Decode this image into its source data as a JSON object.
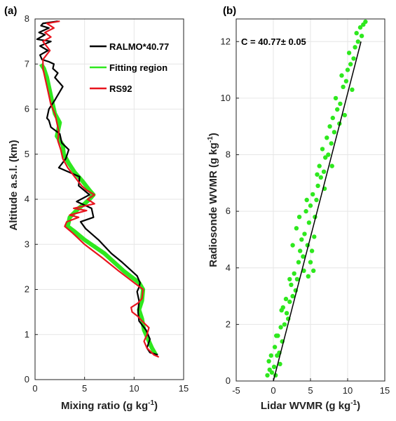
{
  "chart_data": [
    {
      "type": "line",
      "panel_label": "(a)",
      "xlabel": "Mixing ratio (g kg",
      "xlabel_sup": "-1",
      "xlabel_end": ")",
      "ylabel": "Altitude a.s.l. (km)",
      "xlim": [
        0,
        15
      ],
      "ylim": [
        0,
        8
      ],
      "xticks": [
        0,
        5,
        10,
        15
      ],
      "yticks": [
        0,
        1,
        2,
        3,
        4,
        5,
        6,
        7,
        8
      ],
      "grid": true,
      "legend_position": "top-right",
      "series": [
        {
          "name": "RALMO*40.77",
          "color": "#000000",
          "x": [
            12.4,
            11.6,
            11.3,
            11.6,
            11.2,
            10.5,
            10.4,
            10.5,
            10.3,
            10.5,
            10.6,
            10.3,
            8.8,
            7.7,
            6.4,
            5.1,
            4.6,
            5.9,
            5.7,
            4.2,
            5.5,
            4.4,
            4.5,
            2.4,
            3.1,
            3.4,
            2.7,
            2.5,
            1.6,
            1.4,
            1.2,
            1.4,
            2.0,
            2.8,
            2.0,
            2.3,
            1.8,
            1.9,
            1.4,
            0.7,
            0.5,
            1.3,
            0.5,
            1.6,
            0.2,
            1.0,
            0.4,
            1.4,
            0.6,
            0.8,
            2.3
          ],
          "y": [
            0.55,
            0.6,
            0.7,
            0.9,
            1.1,
            1.3,
            1.5,
            1.75,
            1.95,
            2.05,
            2.15,
            2.3,
            2.6,
            2.8,
            3.1,
            3.35,
            3.5,
            3.6,
            3.8,
            3.95,
            4.1,
            4.3,
            4.5,
            4.7,
            4.9,
            5.1,
            5.25,
            5.45,
            5.6,
            5.75,
            5.8,
            6.0,
            6.2,
            6.5,
            6.7,
            6.8,
            6.9,
            7.0,
            7.05,
            7.1,
            7.2,
            7.3,
            7.4,
            7.5,
            7.55,
            7.65,
            7.7,
            7.8,
            7.85,
            7.9,
            7.95
          ]
        },
        {
          "name": "Fitting region",
          "color": "#2ee81e",
          "x": [
            12.2,
            11.8,
            11.4,
            11.0,
            10.8,
            10.5,
            10.8,
            10.9,
            10.5,
            9.0,
            7.0,
            5.0,
            3.9,
            3.3,
            3.5,
            4.4,
            5.0,
            5.5,
            5.9,
            5.5,
            4.8,
            4.0,
            3.4,
            2.9,
            2.8,
            2.2,
            2.3,
            2.5,
            2.0,
            1.8,
            1.6,
            1.4,
            1.2,
            0.9,
            0.6
          ],
          "y": [
            0.55,
            0.7,
            0.9,
            1.1,
            1.35,
            1.55,
            1.75,
            2.0,
            2.15,
            2.4,
            2.8,
            3.1,
            3.3,
            3.4,
            3.6,
            3.8,
            3.9,
            4.0,
            4.1,
            4.2,
            4.4,
            4.6,
            4.8,
            5.0,
            5.2,
            5.4,
            5.5,
            5.7,
            5.9,
            6.1,
            6.3,
            6.5,
            6.7,
            6.9,
            7.0
          ]
        },
        {
          "name": "RS92",
          "color": "#e8141e",
          "x": [
            12.5,
            12.0,
            11.3,
            11.0,
            11.3,
            11.5,
            10.8,
            10.4,
            9.8,
            9.7,
            10.4,
            10.8,
            10.9,
            10.6,
            10.0,
            8.5,
            6.8,
            5.0,
            3.8,
            3.0,
            3.2,
            4.4,
            3.5,
            5.2,
            3.9,
            6.0,
            5.3,
            6.0,
            5.2,
            4.7,
            4.0,
            3.3,
            2.8,
            2.6,
            2.3,
            2.4,
            2.2,
            2.0,
            1.6,
            1.4,
            1.2,
            1.0,
            0.8,
            0.8,
            1.5,
            0.8,
            1.6,
            1.0,
            1.9,
            1.2,
            2.5
          ],
          "y": [
            0.5,
            0.55,
            0.7,
            0.85,
            1.0,
            1.15,
            1.3,
            1.4,
            1.5,
            1.6,
            1.7,
            1.8,
            2.0,
            2.05,
            2.15,
            2.4,
            2.7,
            3.0,
            3.25,
            3.4,
            3.5,
            3.6,
            3.65,
            3.75,
            3.8,
            3.9,
            4.0,
            4.1,
            4.2,
            4.3,
            4.5,
            4.7,
            4.9,
            5.1,
            5.3,
            5.5,
            5.7,
            5.9,
            6.1,
            6.3,
            6.5,
            6.7,
            6.9,
            7.1,
            7.3,
            7.5,
            7.6,
            7.7,
            7.8,
            7.9,
            7.95
          ]
        }
      ]
    },
    {
      "type": "scatter",
      "panel_label": "(b)",
      "xlabel": "Lidar WVMR (g kg",
      "xlabel_sup": "-1",
      "xlabel_end": ")",
      "ylabel": "Radiosonde WVMR (g kg",
      "ylabel_sup": "-1",
      "ylabel_end": ")",
      "xlim": [
        -5,
        15
      ],
      "ylim": [
        0,
        12.8
      ],
      "xticks": [
        -5,
        0,
        5,
        10,
        15
      ],
      "yticks": [
        0,
        2,
        4,
        6,
        8,
        10,
        12
      ],
      "grid": true,
      "annotation": "C = 40.77± 0.05",
      "point_color": "#2ee81e",
      "fit_color": "#000000",
      "fit": {
        "x": [
          0,
          11.8
        ],
        "y": [
          0,
          12.0
        ]
      },
      "points": [
        [
          -0.8,
          0.2
        ],
        [
          -0.5,
          0.4
        ],
        [
          -0.2,
          0.3
        ],
        [
          0.1,
          0.5
        ],
        [
          0.3,
          0.2
        ],
        [
          -0.6,
          0.7
        ],
        [
          0.5,
          0.9
        ],
        [
          0.2,
          1.2
        ],
        [
          0.8,
          1.0
        ],
        [
          0.6,
          1.6
        ],
        [
          1.0,
          1.9
        ],
        [
          1.2,
          1.4
        ],
        [
          1.5,
          2.0
        ],
        [
          1.8,
          2.4
        ],
        [
          1.3,
          2.6
        ],
        [
          2.0,
          2.2
        ],
        [
          2.2,
          2.8
        ],
        [
          2.6,
          3.0
        ],
        [
          2.4,
          3.4
        ],
        [
          3.0,
          3.2
        ],
        [
          2.8,
          3.8
        ],
        [
          3.2,
          3.6
        ],
        [
          3.4,
          4.2
        ],
        [
          3.6,
          4.6
        ],
        [
          4.0,
          4.4
        ],
        [
          3.8,
          5.0
        ],
        [
          4.2,
          5.2
        ],
        [
          4.6,
          4.8
        ],
        [
          5.0,
          4.2
        ],
        [
          5.4,
          3.9
        ],
        [
          5.2,
          4.6
        ],
        [
          4.8,
          5.6
        ],
        [
          4.4,
          6.0
        ],
        [
          5.0,
          6.2
        ],
        [
          5.6,
          5.8
        ],
        [
          5.3,
          6.6
        ],
        [
          5.8,
          6.4
        ],
        [
          6.0,
          6.9
        ],
        [
          6.4,
          7.2
        ],
        [
          6.2,
          7.6
        ],
        [
          6.8,
          7.4
        ],
        [
          7.0,
          7.9
        ],
        [
          6.6,
          8.2
        ],
        [
          7.4,
          8.0
        ],
        [
          7.2,
          8.6
        ],
        [
          7.8,
          8.4
        ],
        [
          7.6,
          9.0
        ],
        [
          8.2,
          8.8
        ],
        [
          8.0,
          9.3
        ],
        [
          8.6,
          9.6
        ],
        [
          8.4,
          10.0
        ],
        [
          9.0,
          9.8
        ],
        [
          9.4,
          10.4
        ],
        [
          9.2,
          10.8
        ],
        [
          9.8,
          10.6
        ],
        [
          10.0,
          11.0
        ],
        [
          10.4,
          11.2
        ],
        [
          10.2,
          11.6
        ],
        [
          10.8,
          11.4
        ],
        [
          11.0,
          11.8
        ],
        [
          11.4,
          12.0
        ],
        [
          11.2,
          12.3
        ],
        [
          11.7,
          12.5
        ],
        [
          12.1,
          12.6
        ],
        [
          12.4,
          12.7
        ],
        [
          11.9,
          12.2
        ],
        [
          3.1,
          5.4
        ],
        [
          2.6,
          4.8
        ],
        [
          4.1,
          3.9
        ],
        [
          4.7,
          3.7
        ],
        [
          5.5,
          5.1
        ],
        [
          2.2,
          3.6
        ],
        [
          1.7,
          2.9
        ],
        [
          6.9,
          6.8
        ],
        [
          7.9,
          7.6
        ],
        [
          8.9,
          9.1
        ],
        [
          9.6,
          9.4
        ],
        [
          10.6,
          10.3
        ],
        [
          3.5,
          5.8
        ],
        [
          4.5,
          6.4
        ],
        [
          5.9,
          7.3
        ],
        [
          0.4,
          1.6
        ],
        [
          1.1,
          2.5
        ],
        [
          -0.3,
          0.9
        ],
        [
          0.9,
          0.6
        ]
      ]
    }
  ]
}
